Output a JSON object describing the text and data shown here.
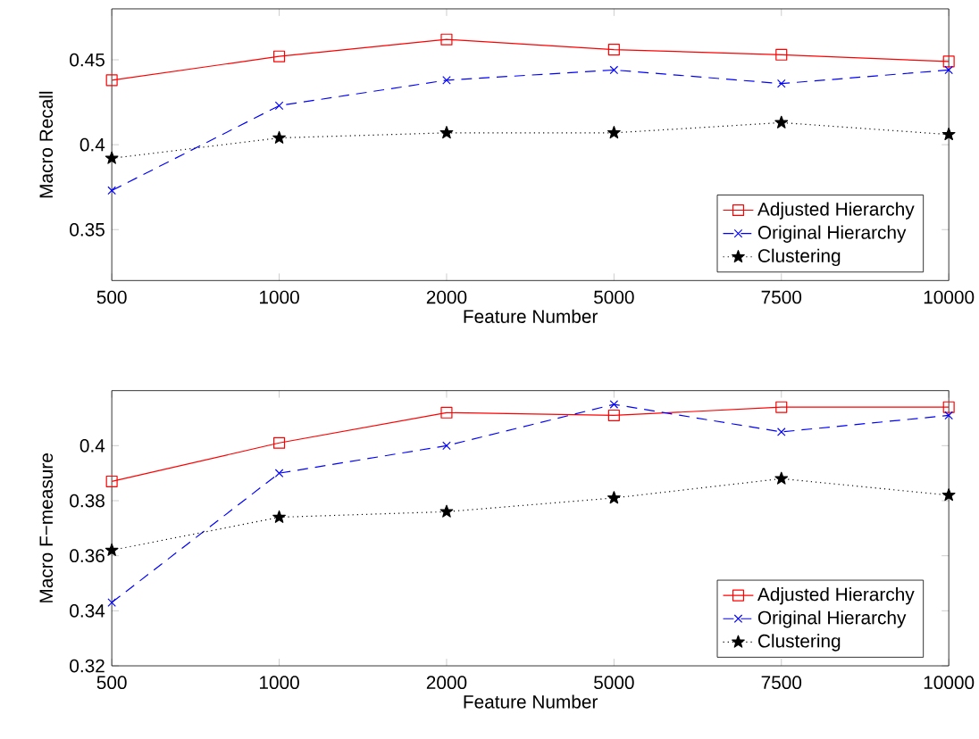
{
  "chart_data": [
    {
      "type": "line",
      "xlabel": "Feature Number",
      "ylabel": "Macro Recall",
      "categories": [
        "500",
        "1000",
        "2000",
        "5000",
        "7500",
        "10000"
      ],
      "ylim": [
        0.32,
        0.48
      ],
      "yticks": [
        0.35,
        0.4,
        0.45
      ],
      "legend": "bottom right",
      "grid": false,
      "series": [
        {
          "name": "Adjusted Hierarchy",
          "color": "#ff0000",
          "marker": "square",
          "line_style": "solid",
          "values": [
            0.438,
            0.452,
            0.462,
            0.456,
            0.453,
            0.449
          ]
        },
        {
          "name": "Original Hierarchy",
          "color": "#0000ff",
          "marker": "cross",
          "line_style": "dashed",
          "values": [
            0.373,
            0.423,
            0.438,
            0.444,
            0.436,
            0.444
          ]
        },
        {
          "name": "Clustering",
          "color": "#000000",
          "marker": "star",
          "line_style": "dotted",
          "values": [
            0.392,
            0.404,
            0.407,
            0.407,
            0.413,
            0.406
          ]
        }
      ]
    },
    {
      "type": "line",
      "xlabel": "Feature Number",
      "ylabel": "Macro F−measure",
      "categories": [
        "500",
        "1000",
        "2000",
        "5000",
        "7500",
        "10000"
      ],
      "ylim": [
        0.32,
        0.42
      ],
      "yticks": [
        0.32,
        0.34,
        0.36,
        0.38,
        0.4
      ],
      "legend": "bottom right",
      "grid": false,
      "series": [
        {
          "name": "Adjusted Hierarchy",
          "color": "#ff0000",
          "marker": "square",
          "line_style": "solid",
          "values": [
            0.387,
            0.401,
            0.412,
            0.411,
            0.414,
            0.414
          ]
        },
        {
          "name": "Original Hierarchy",
          "color": "#0000ff",
          "marker": "cross",
          "line_style": "dashed",
          "values": [
            0.343,
            0.39,
            0.4,
            0.415,
            0.405,
            0.411
          ]
        },
        {
          "name": "Clustering",
          "color": "#000000",
          "marker": "star",
          "line_style": "dotted",
          "values": [
            0.362,
            0.374,
            0.376,
            0.381,
            0.388,
            0.382
          ]
        }
      ]
    }
  ]
}
